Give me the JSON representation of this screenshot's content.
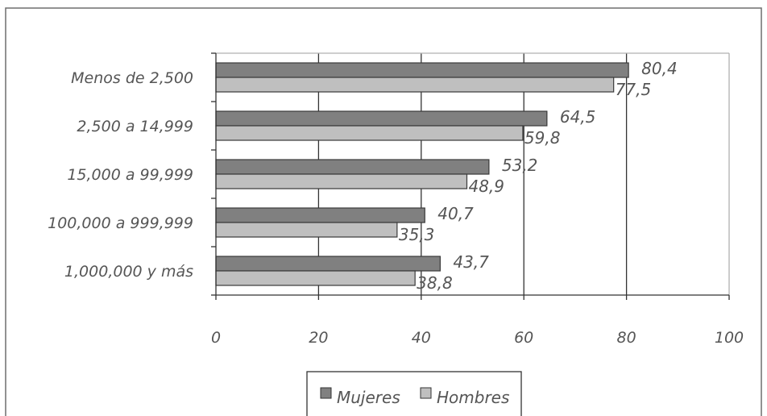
{
  "chart_data": {
    "type": "bar",
    "orientation": "horizontal",
    "categories": [
      "Menos de 2,500",
      "2,500 a 14,999",
      "15,000 a 99,999",
      "100,000 a 999,999",
      "1,000,000 y más"
    ],
    "series": [
      {
        "name": "Mujeres",
        "values": [
          80.4,
          64.5,
          53.2,
          40.7,
          43.7
        ],
        "labels": [
          "80,4",
          "64,5",
          "53,2",
          "40,7",
          "43,7"
        ],
        "color": "#808080"
      },
      {
        "name": "Hombres",
        "values": [
          77.5,
          59.8,
          48.9,
          35.3,
          38.8
        ],
        "labels": [
          "77,5",
          "59,8",
          "48,9",
          "35,3",
          "38,8"
        ],
        "color": "#bfbfbf"
      }
    ],
    "xlim": [
      0,
      100
    ],
    "xticks": [
      0,
      20,
      40,
      60,
      80,
      100
    ],
    "xtick_labels": [
      "0",
      "20",
      "40",
      "60",
      "80",
      "100"
    ],
    "grid": true,
    "legend": "bottom",
    "title": "",
    "xlabel": "",
    "ylabel": ""
  }
}
